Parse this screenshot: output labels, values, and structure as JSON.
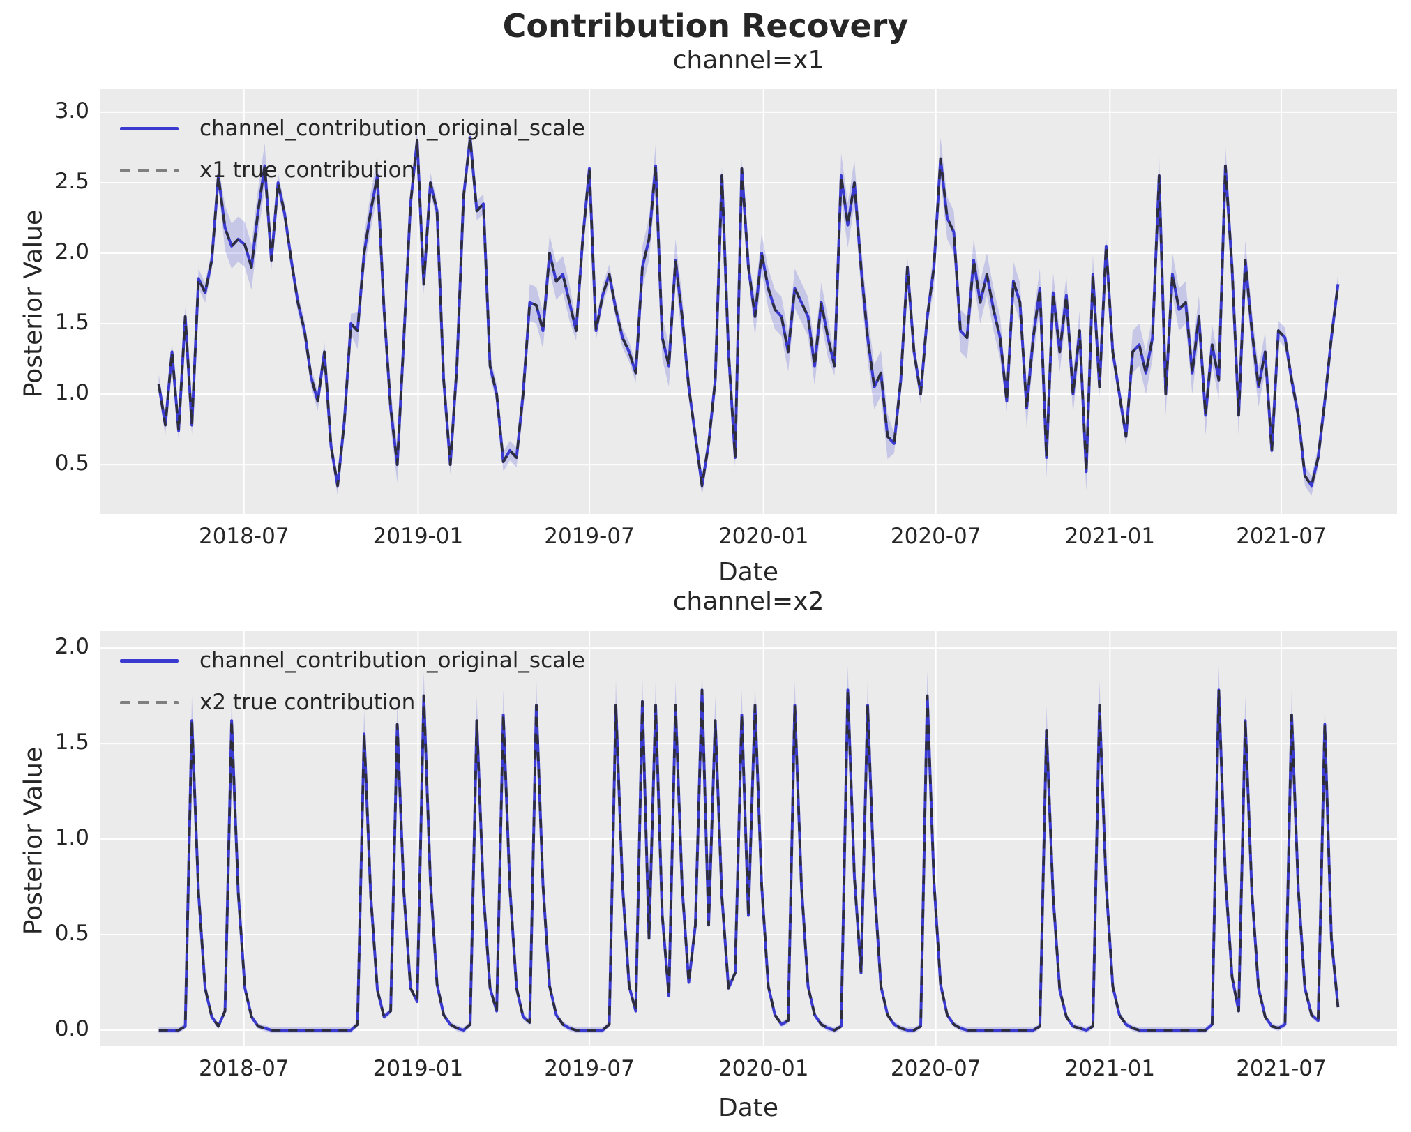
{
  "figure": {
    "title": "Contribution Recovery",
    "background_color": "#ffffff",
    "axes_background_color": "#ebebeb",
    "gridline_color": "#ffffff",
    "text_color": "#262626",
    "posterior_line_color": "#3a3ad1",
    "true_line_dash_color": "#2e2e2e",
    "legend_dash_sample_color": "#7f7f7f",
    "band_fill_color": "rgba(70,70,220,0.22)"
  },
  "chart_data": [
    {
      "type": "line",
      "title": "channel=x1",
      "xlabel": "Date",
      "ylabel": "Posterior Value",
      "legend": [
        "channel_contribution_original_scale",
        "x1 true contribution"
      ],
      "legend_position": "upper-left",
      "grid": true,
      "x_start_week": "2018-04-02",
      "x_freq": "weekly",
      "n_points": 179,
      "ylim": [
        0.149,
        3.163
      ],
      "yticks": [
        {
          "v": 3.0,
          "label": "3.0"
        },
        {
          "v": 2.5,
          "label": "2.5"
        },
        {
          "v": 2.0,
          "label": "2.0"
        },
        {
          "v": 1.5,
          "label": "1.5"
        },
        {
          "v": 1.0,
          "label": "1.0"
        },
        {
          "v": 0.5,
          "label": "0.5"
        }
      ],
      "xticks": [
        {
          "frac": 12.857,
          "label": "2018-07"
        },
        {
          "frac": 39.143,
          "label": "2019-01"
        },
        {
          "frac": 65.0,
          "label": "2019-07"
        },
        {
          "frac": 91.286,
          "label": "2020-01"
        },
        {
          "frac": 117.286,
          "label": "2020-07"
        },
        {
          "frac": 143.571,
          "label": "2021-01"
        },
        {
          "frac": 169.429,
          "label": "2021-07"
        }
      ],
      "series": [
        {
          "name": "channel_contribution_original_scale",
          "style": "solid",
          "values": [
            1.07,
            0.78,
            1.3,
            0.74,
            1.55,
            0.78,
            1.82,
            1.72,
            1.95,
            2.55,
            2.18,
            2.05,
            2.1,
            2.06,
            1.9,
            2.3,
            2.62,
            1.95,
            2.5,
            2.28,
            1.95,
            1.65,
            1.45,
            1.12,
            0.95,
            1.3,
            0.63,
            0.35,
            0.8,
            1.5,
            1.45,
            2.0,
            2.3,
            2.55,
            1.6,
            0.9,
            0.5,
            1.4,
            2.35,
            2.8,
            1.78,
            2.5,
            2.3,
            1.1,
            0.5,
            1.2,
            2.4,
            2.82,
            2.3,
            2.35,
            1.2,
            1.0,
            0.52,
            0.6,
            0.55,
            1.0,
            1.65,
            1.63,
            1.45,
            2.0,
            1.8,
            1.85,
            1.65,
            1.45,
            2.1,
            2.6,
            1.45,
            1.7,
            1.85,
            1.6,
            1.4,
            1.3,
            1.15,
            1.9,
            2.1,
            2.62,
            1.4,
            1.2,
            1.95,
            1.55,
            1.05,
            0.7,
            0.35,
            0.65,
            1.1,
            2.55,
            1.3,
            0.55,
            2.6,
            1.9,
            1.55,
            2.0,
            1.75,
            1.6,
            1.55,
            1.3,
            1.75,
            1.65,
            1.55,
            1.2,
            1.65,
            1.4,
            1.2,
            2.55,
            2.2,
            2.5,
            1.9,
            1.4,
            1.05,
            1.15,
            0.7,
            0.65,
            1.1,
            1.9,
            1.3,
            1.0,
            1.55,
            1.9,
            2.67,
            2.25,
            2.15,
            1.45,
            1.4,
            1.95,
            1.65,
            1.85,
            1.6,
            1.4,
            0.95,
            1.8,
            1.65,
            0.9,
            1.4,
            1.75,
            0.55,
            1.72,
            1.3,
            1.7,
            1.0,
            1.45,
            0.45,
            1.85,
            1.05,
            2.05,
            1.3,
            1.0,
            0.7,
            1.3,
            1.35,
            1.15,
            1.4,
            2.55,
            1.0,
            1.85,
            1.6,
            1.65,
            1.15,
            1.55,
            0.85,
            1.35,
            1.1,
            2.62,
            1.9,
            0.85,
            1.95,
            1.45,
            1.05,
            1.3,
            0.6,
            1.45,
            1.4,
            1.1,
            0.85,
            0.42,
            0.35,
            0.55,
            0.95,
            1.4,
            1.78
          ]
        },
        {
          "name": "x1 true contribution",
          "style": "dashed",
          "same_as_series": 0
        }
      ],
      "band": {
        "type": "halfwidth_regions",
        "base": 0.07,
        "regions": [
          [
            10,
            16,
            0.16
          ],
          [
            30,
            36,
            0.13
          ],
          [
            55,
            62,
            0.13
          ],
          [
            73,
            79,
            0.15
          ],
          [
            90,
            101,
            0.14
          ],
          [
            103,
            110,
            0.16
          ],
          [
            117,
            127,
            0.15
          ],
          [
            129,
            141,
            0.14
          ],
          [
            147,
            157,
            0.15
          ],
          [
            158,
            167,
            0.14
          ]
        ]
      }
    },
    {
      "type": "line",
      "title": "channel=x2",
      "xlabel": "Date",
      "ylabel": "Posterior Value",
      "legend": [
        "channel_contribution_original_scale",
        "x2 true contribution"
      ],
      "legend_position": "upper-left",
      "grid": true,
      "x_start_week": "2018-04-02",
      "x_freq": "weekly",
      "n_points": 179,
      "ylim": [
        -0.084,
        2.088
      ],
      "yticks": [
        {
          "v": 2.0,
          "label": "2.0"
        },
        {
          "v": 1.5,
          "label": "1.5"
        },
        {
          "v": 1.0,
          "label": "1.0"
        },
        {
          "v": 0.5,
          "label": "0.5"
        },
        {
          "v": 0.0,
          "label": "0.0"
        }
      ],
      "xticks": [
        {
          "frac": 12.857,
          "label": "2018-07"
        },
        {
          "frac": 39.143,
          "label": "2019-01"
        },
        {
          "frac": 65.0,
          "label": "2019-07"
        },
        {
          "frac": 91.286,
          "label": "2020-01"
        },
        {
          "frac": 117.286,
          "label": "2020-07"
        },
        {
          "frac": 143.571,
          "label": "2021-01"
        },
        {
          "frac": 169.429,
          "label": "2021-07"
        }
      ],
      "series": [
        {
          "name": "channel_contribution_original_scale",
          "style": "solid",
          "values": [
            0,
            0,
            0,
            0,
            0.02,
            1.62,
            0.72,
            0.22,
            0.07,
            0.02,
            0.1,
            1.62,
            0.72,
            0.22,
            0.07,
            0.02,
            0.01,
            0,
            0,
            0,
            0,
            0,
            0,
            0,
            0,
            0,
            0,
            0,
            0,
            0,
            0.03,
            1.55,
            0.7,
            0.21,
            0.07,
            0.1,
            1.6,
            0.72,
            0.22,
            0.15,
            1.75,
            0.78,
            0.24,
            0.08,
            0.03,
            0.01,
            0,
            0.03,
            1.62,
            0.72,
            0.22,
            0.1,
            1.65,
            0.74,
            0.22,
            0.07,
            0.04,
            1.7,
            0.76,
            0.23,
            0.08,
            0.03,
            0.01,
            0,
            0,
            0,
            0,
            0,
            0.03,
            1.7,
            0.76,
            0.23,
            0.1,
            1.72,
            0.48,
            1.7,
            0.6,
            0.18,
            1.7,
            0.75,
            0.25,
            0.55,
            1.78,
            0.55,
            1.62,
            0.7,
            0.22,
            0.3,
            1.65,
            0.6,
            1.7,
            0.76,
            0.23,
            0.08,
            0.03,
            0.05,
            1.7,
            0.76,
            0.23,
            0.08,
            0.03,
            0.01,
            0,
            0.02,
            1.78,
            0.8,
            0.3,
            1.7,
            0.76,
            0.23,
            0.08,
            0.03,
            0.01,
            0,
            0,
            0.02,
            1.75,
            0.78,
            0.24,
            0.08,
            0.03,
            0.01,
            0,
            0,
            0,
            0,
            0,
            0,
            0,
            0,
            0,
            0,
            0,
            0.02,
            1.57,
            0.7,
            0.21,
            0.07,
            0.02,
            0.01,
            0,
            0.02,
            1.7,
            0.76,
            0.23,
            0.08,
            0.03,
            0.01,
            0,
            0,
            0,
            0,
            0,
            0,
            0,
            0,
            0,
            0,
            0,
            0.03,
            1.78,
            0.8,
            0.28,
            0.1,
            1.62,
            0.72,
            0.22,
            0.07,
            0.02,
            0.01,
            0.03,
            1.65,
            0.74,
            0.22,
            0.08,
            0.05,
            1.6,
            0.48,
            0.12
          ]
        },
        {
          "name": "x2 true contribution",
          "style": "dashed",
          "same_as_series": 0
        }
      ],
      "band": {
        "type": "spike",
        "base": 0.015,
        "spike_threshold": 1.0,
        "spike_upper": 0.13,
        "spike_lower": 0.05
      }
    }
  ]
}
